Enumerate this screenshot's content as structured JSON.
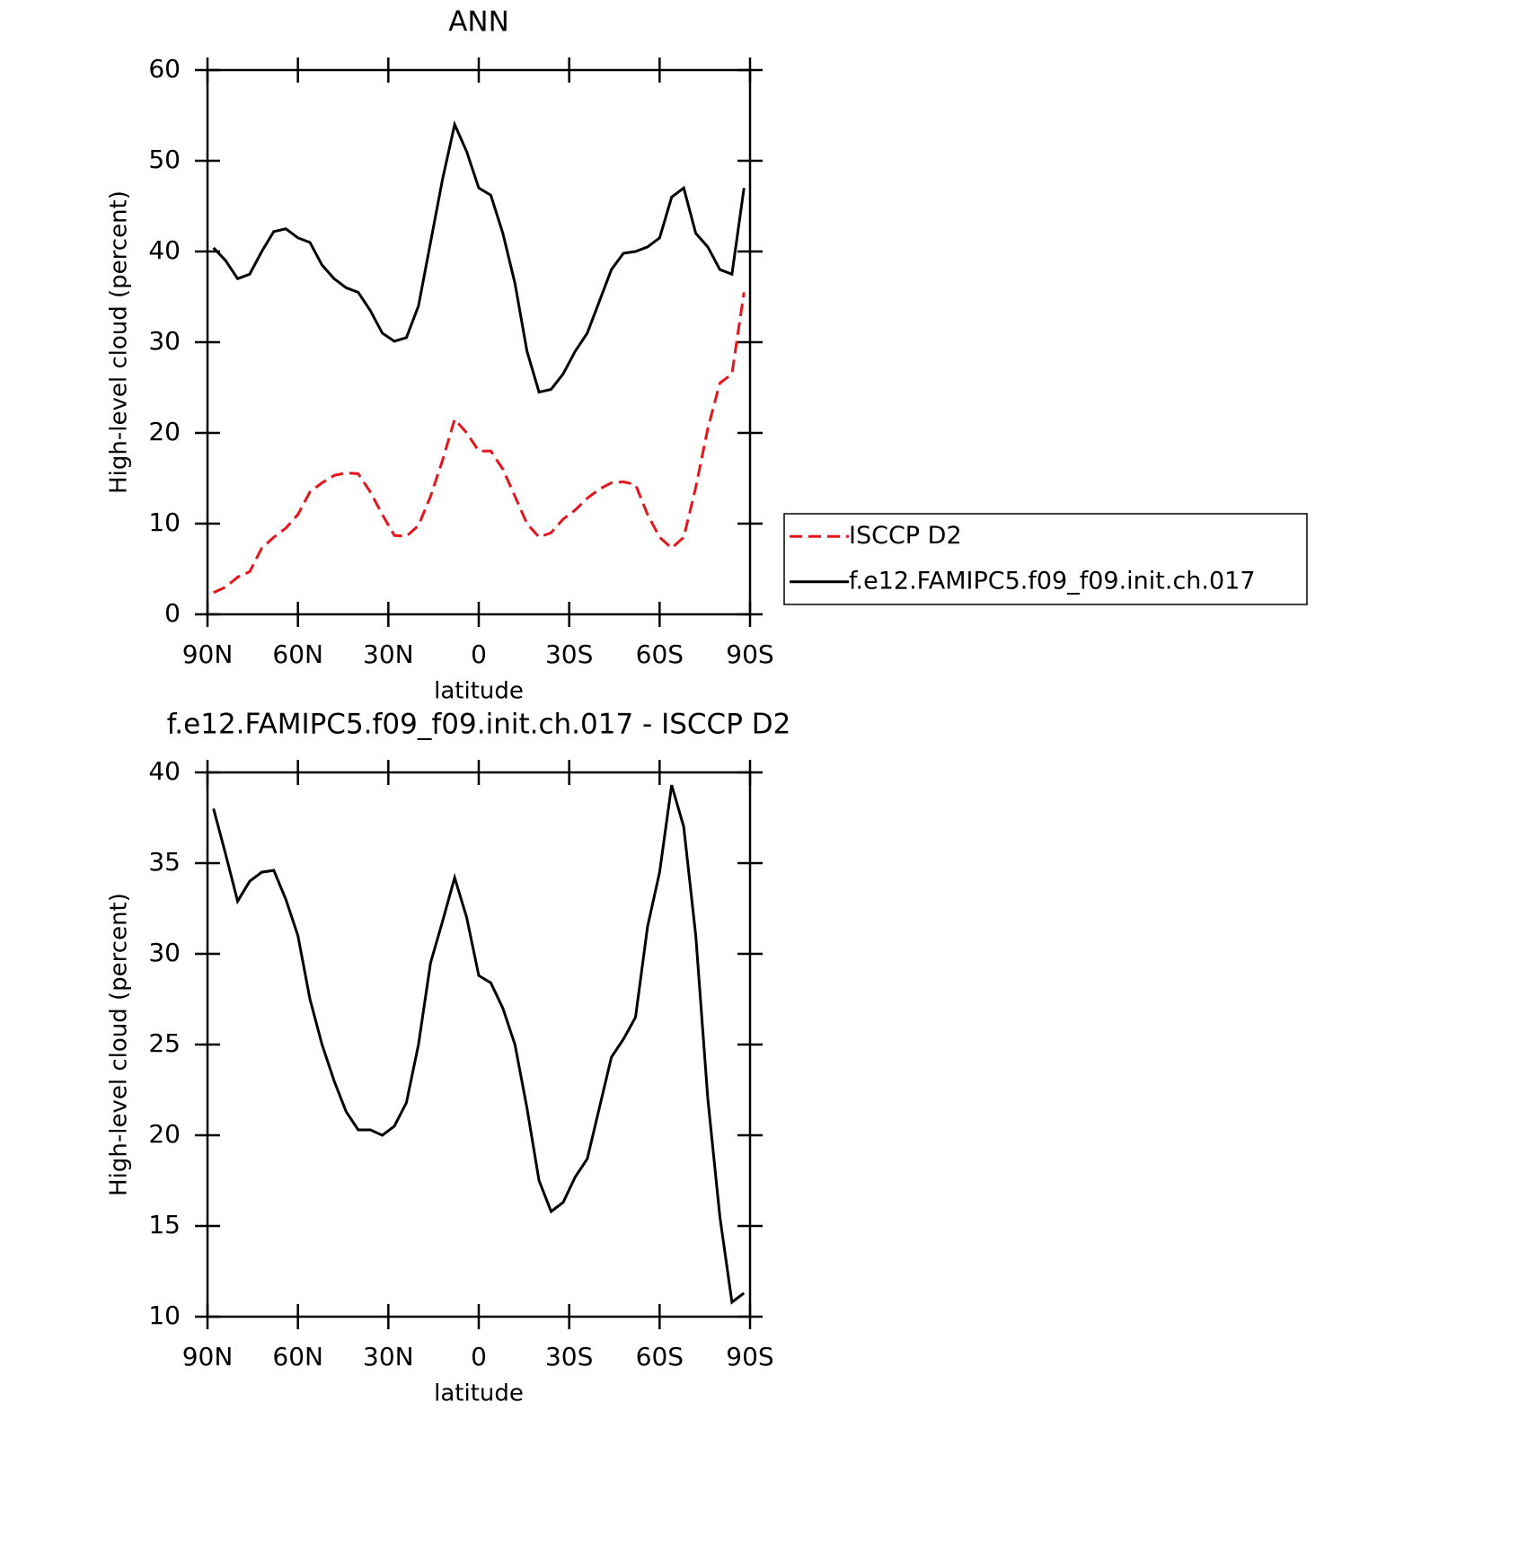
{
  "chart_data": [
    {
      "type": "line",
      "title": "ANN",
      "xlabel": "latitude",
      "ylabel": "High-level cloud (percent)",
      "x": [
        88,
        84,
        80,
        76,
        72,
        68,
        64,
        60,
        56,
        52,
        48,
        44,
        40,
        36,
        32,
        28,
        24,
        20,
        16,
        12,
        8,
        4,
        0,
        -4,
        -8,
        -12,
        -16,
        -20,
        -24,
        -28,
        -32,
        -36,
        -40,
        -44,
        -48,
        -52,
        -56,
        -60,
        -64,
        -68,
        -72,
        -76,
        -80,
        -84,
        -88
      ],
      "series": [
        {
          "name": "ISCCP D2",
          "color": "#e8141a",
          "dash": true,
          "values": [
            2.4,
            3,
            4.1,
            4.7,
            7.3,
            8.5,
            9.5,
            11,
            13.5,
            14.5,
            15.3,
            15.6,
            15.5,
            13.5,
            11,
            8.7,
            8.6,
            9.8,
            13,
            17,
            21.5,
            20,
            18,
            18,
            16,
            13,
            10,
            8.5,
            9,
            10.5,
            11.5,
            12.8,
            13.8,
            14.5,
            14.6,
            14.3,
            11,
            8.5,
            7.3,
            8.5,
            14,
            20.5,
            25.5,
            26.5,
            35.5
          ]
        },
        {
          "name": "f.e12.FAMIPC5.f09_f09.init.ch.017",
          "color": "#000000",
          "dash": false,
          "values": [
            40.4,
            39,
            37,
            37.5,
            40,
            42.2,
            42.5,
            41.5,
            41,
            38.5,
            37,
            36,
            35.5,
            33.5,
            31,
            30.1,
            30.5,
            34,
            41,
            48,
            54,
            51,
            47,
            46.2,
            42,
            36.5,
            29,
            24.5,
            24.8,
            26.5,
            29,
            31,
            34.5,
            38,
            39.8,
            40,
            40.5,
            41.5,
            46,
            47,
            42,
            40.5,
            38,
            37.5,
            47
          ]
        }
      ],
      "xlim": [
        90,
        -90
      ],
      "xticks": [
        {
          "value": 90,
          "label": "90N"
        },
        {
          "value": 60,
          "label": "60N"
        },
        {
          "value": 30,
          "label": "30N"
        },
        0,
        {
          "value": -30,
          "label": "30S"
        },
        {
          "value": -60,
          "label": "60S"
        },
        {
          "value": -90,
          "label": "90S"
        }
      ],
      "ylim": [
        0,
        60
      ],
      "yticks": [
        0,
        10,
        20,
        30,
        40,
        50,
        60
      ],
      "legend": true
    },
    {
      "type": "line",
      "title": "f.e12.FAMIPC5.f09_f09.init.ch.017 - ISCCP D2",
      "xlabel": "latitude",
      "ylabel": "High-level cloud (percent)",
      "x": [
        88,
        84,
        80,
        76,
        72,
        68,
        64,
        60,
        56,
        52,
        48,
        44,
        40,
        36,
        32,
        28,
        24,
        20,
        16,
        12,
        8,
        4,
        0,
        -4,
        -8,
        -12,
        -16,
        -20,
        -24,
        -28,
        -32,
        -36,
        -40,
        -44,
        -48,
        -52,
        -56,
        -60,
        -64,
        -68,
        -72,
        -76,
        -80,
        -84,
        -88
      ],
      "series": [
        {
          "color": "#000000",
          "dash": false,
          "values": [
            38,
            35.5,
            32.9,
            34,
            34.5,
            34.6,
            33,
            31,
            27.5,
            25,
            23,
            21.3,
            20.3,
            20.3,
            20,
            20.5,
            21.8,
            25,
            29.5,
            31.8,
            34.2,
            32,
            28.8,
            28.4,
            27,
            25,
            21.5,
            17.5,
            15.8,
            16.3,
            17.7,
            18.7,
            21.5,
            24.3,
            25.3,
            26.5,
            31.5,
            34.5,
            39.3,
            37,
            31,
            22,
            15.5,
            10.8,
            11.3
          ]
        }
      ],
      "xlim": [
        90,
        -90
      ],
      "xticks": [
        {
          "value": 90,
          "label": "90N"
        },
        {
          "value": 60,
          "label": "60N"
        },
        {
          "value": 30,
          "label": "30N"
        },
        0,
        {
          "value": -30,
          "label": "30S"
        },
        {
          "value": -60,
          "label": "60S"
        },
        {
          "value": -90,
          "label": "90S"
        }
      ],
      "ylim": [
        10,
        40
      ],
      "yticks": [
        10,
        15,
        20,
        25,
        30,
        35,
        40
      ],
      "legend": false
    }
  ]
}
